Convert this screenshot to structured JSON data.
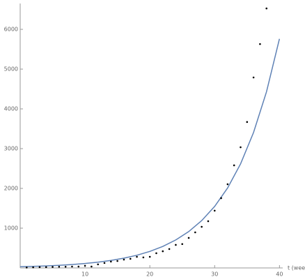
{
  "chart_data": {
    "type": "scatter",
    "x_label": "t (week",
    "x": [
      1,
      2,
      3,
      4,
      5,
      6,
      7,
      8,
      9,
      10,
      11,
      12,
      13,
      14,
      15,
      16,
      17,
      18,
      19,
      20,
      21,
      22,
      23,
      24,
      25,
      26,
      27,
      28,
      29,
      30,
      31,
      32,
      33,
      34,
      35,
      36,
      37,
      38
    ],
    "values": [
      10,
      15,
      20,
      20,
      25,
      30,
      30,
      35,
      35,
      55,
      35,
      90,
      125,
      160,
      175,
      210,
      230,
      280,
      265,
      280,
      370,
      420,
      475,
      580,
      600,
      755,
      895,
      1035,
      1175,
      1440,
      1755,
      2105,
      2580,
      3035,
      3670,
      4790,
      5630,
      6526
    ],
    "color": "#000000",
    "fit": {
      "x": [
        0,
        2,
        4,
        6,
        8,
        10,
        12,
        14,
        16,
        18,
        20,
        22,
        24,
        26,
        28,
        30,
        32,
        34,
        36,
        38,
        40
      ],
      "values": [
        30,
        39,
        51,
        66,
        86,
        112,
        145,
        189,
        246,
        320,
        416,
        541,
        704,
        915,
        1190,
        1548,
        2013,
        2618,
        3405,
        4429,
        5760
      ],
      "color": "#5e81b5"
    },
    "xlim": [
      0,
      40.5
    ],
    "ylim": [
      0,
      6650
    ],
    "xticks": [
      10,
      20,
      30,
      40
    ],
    "yticks": [
      1000,
      2000,
      3000,
      4000,
      5000,
      6000
    ]
  }
}
